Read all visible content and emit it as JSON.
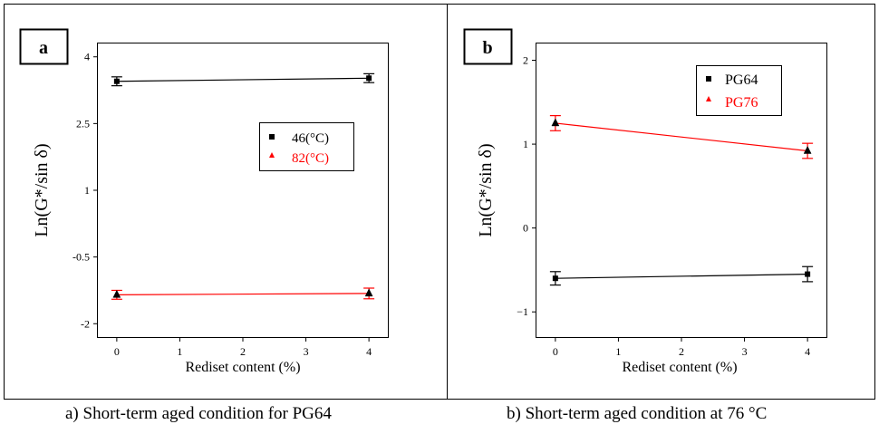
{
  "chart_data": [
    {
      "type": "scatter",
      "panel_label": "a",
      "caption": "a)   Short-term aged condition for PG64",
      "xlabel": "Rediset content (%)",
      "ylabel": "Ln(G*/sin δ)",
      "xlim": [
        -0.3,
        4.3
      ],
      "ylim": [
        -2.3,
        4.3
      ],
      "x_ticks": [
        "0",
        "1",
        "2",
        "3",
        "4"
      ],
      "y_ticks": [
        "4",
        "2.5",
        "1",
        "-0.5",
        "-2"
      ],
      "x_tick_values": [
        0,
        1,
        2,
        3,
        4
      ],
      "y_tick_values": [
        4,
        2.5,
        1,
        -0.5,
        -2
      ],
      "legend_position": "right",
      "grid": false,
      "series": [
        {
          "name": "46(°C)",
          "color": "#000000",
          "marker": "square",
          "x": [
            0,
            4
          ],
          "y": [
            3.45,
            3.52
          ],
          "error": [
            0.1,
            0.1
          ],
          "fit": [
            3.45,
            3.52
          ]
        },
        {
          "name": "82(°C)",
          "color": "#ff0000",
          "marker": "triangle",
          "x": [
            0,
            4
          ],
          "y": [
            -1.35,
            -1.32
          ],
          "error": [
            0.1,
            0.12
          ],
          "fit": [
            -1.35,
            -1.32
          ]
        }
      ]
    },
    {
      "type": "scatter",
      "panel_label": "b",
      "caption": "b)   Short-term aged condition at 76 °C",
      "xlabel": "Rediset content (%)",
      "ylabel": "Ln(G*/sin δ)",
      "xlim": [
        -0.3,
        4.3
      ],
      "ylim": [
        -1.3,
        2.2
      ],
      "x_ticks": [
        "0",
        "1",
        "2",
        "3",
        "4"
      ],
      "y_ticks": [
        "2",
        "1",
        "0",
        "−1"
      ],
      "x_tick_values": [
        0,
        1,
        2,
        3,
        4
      ],
      "y_tick_values": [
        2,
        1,
        0,
        -1
      ],
      "legend_position": "top-right",
      "grid": false,
      "series": [
        {
          "name": "PG64",
          "color": "#000000",
          "marker": "square",
          "x": [
            0,
            4
          ],
          "y": [
            -0.6,
            -0.55
          ],
          "error": [
            0.08,
            0.09
          ],
          "fit": [
            -0.6,
            -0.55
          ]
        },
        {
          "name": "PG76",
          "color": "#ff0000",
          "marker": "triangle",
          "x": [
            0,
            4
          ],
          "y": [
            1.25,
            0.92
          ],
          "error": [
            0.09,
            0.09
          ],
          "fit": [
            1.25,
            0.92
          ]
        }
      ]
    }
  ]
}
